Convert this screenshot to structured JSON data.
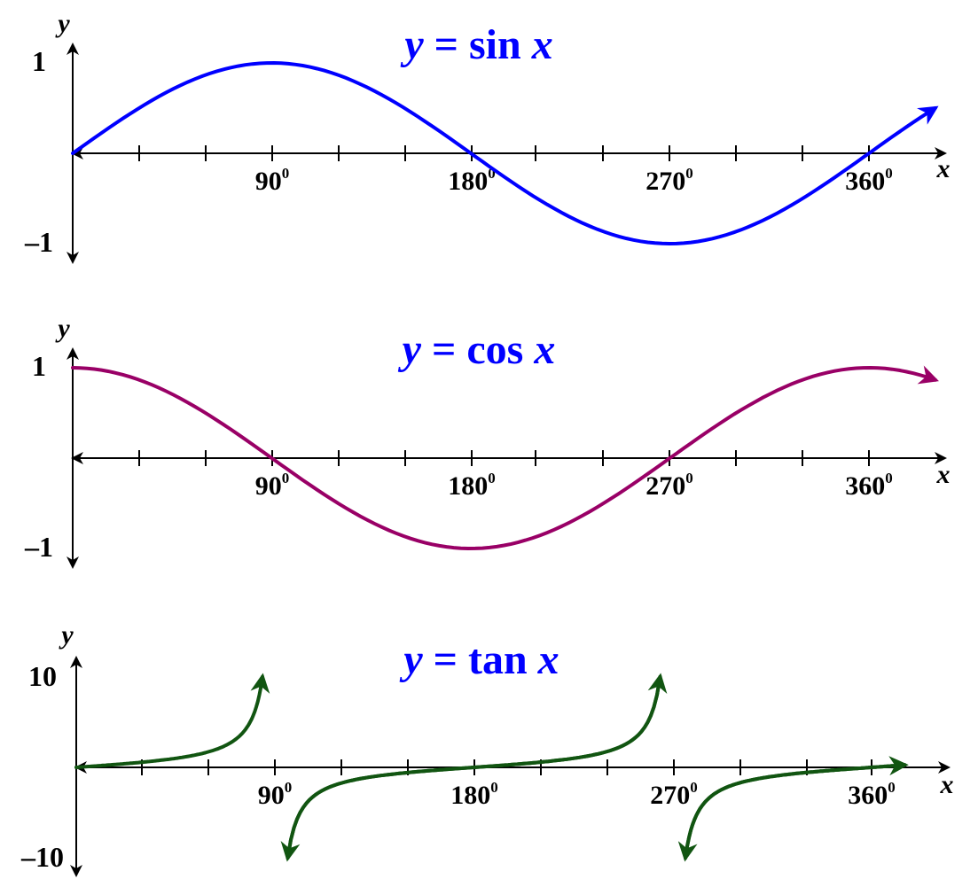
{
  "chart_data": [
    {
      "type": "line",
      "title": {
        "prefix": "y",
        "rest": " = sin ",
        "var": "x"
      },
      "xlabel": "x",
      "ylabel": "y",
      "xlim": [
        0,
        360
      ],
      "ylim": [
        -1,
        1
      ],
      "y_tick_labels": [
        "1",
        "–1"
      ],
      "x_tick_labels": [
        {
          "value": 90,
          "base": "90",
          "sup": "0"
        },
        {
          "value": 180,
          "base": "180",
          "sup": "0"
        },
        {
          "value": 270,
          "base": "270",
          "sup": "0"
        },
        {
          "value": 360,
          "base": "360",
          "sup": "0"
        }
      ],
      "x_minor_ticks": [
        30,
        60,
        90,
        120,
        150,
        180,
        210,
        240,
        270,
        300,
        330,
        360
      ],
      "color": "#0000ff",
      "function": "sin",
      "series": [
        {
          "x": [
            0,
            30,
            60,
            90,
            120,
            150,
            180,
            210,
            240,
            270,
            300,
            330,
            360,
            390
          ],
          "y": [
            0,
            0.5,
            0.87,
            1,
            0.87,
            0.5,
            0,
            -0.5,
            -0.87,
            -1,
            -0.87,
            -0.5,
            0,
            0.5
          ]
        }
      ]
    },
    {
      "type": "line",
      "title": {
        "prefix": "y",
        "rest": " = cos ",
        "var": "x"
      },
      "xlabel": "x",
      "ylabel": "y",
      "xlim": [
        0,
        360
      ],
      "ylim": [
        -1,
        1
      ],
      "y_tick_labels": [
        "1",
        "–1"
      ],
      "x_tick_labels": [
        {
          "value": 90,
          "base": "90",
          "sup": "0"
        },
        {
          "value": 180,
          "base": "180",
          "sup": "0"
        },
        {
          "value": 270,
          "base": "270",
          "sup": "0"
        },
        {
          "value": 360,
          "base": "360",
          "sup": "0"
        }
      ],
      "x_minor_ticks": [
        30,
        60,
        90,
        120,
        150,
        180,
        210,
        240,
        270,
        300,
        330,
        360
      ],
      "color": "#990066",
      "function": "cos",
      "series": [
        {
          "x": [
            0,
            30,
            60,
            90,
            120,
            150,
            180,
            210,
            240,
            270,
            300,
            330,
            360,
            390
          ],
          "y": [
            1,
            0.87,
            0.5,
            0,
            -0.5,
            -0.87,
            -1,
            -0.87,
            -0.5,
            0,
            0.5,
            0.87,
            1,
            0.87
          ]
        }
      ]
    },
    {
      "type": "line",
      "title": {
        "prefix": "y",
        "rest": " = tan ",
        "var": "x"
      },
      "xlabel": "x",
      "ylabel": "y",
      "xlim": [
        0,
        360
      ],
      "ylim": [
        -10,
        10
      ],
      "y_tick_labels": [
        "10",
        "–10"
      ],
      "x_tick_labels": [
        {
          "value": 90,
          "base": "90",
          "sup": "0"
        },
        {
          "value": 180,
          "base": "180",
          "sup": "0"
        },
        {
          "value": 270,
          "base": "270",
          "sup": "0"
        },
        {
          "value": 360,
          "base": "360",
          "sup": "0"
        }
      ],
      "x_minor_ticks": [
        30,
        60,
        90,
        120,
        150,
        180,
        210,
        240,
        270,
        300,
        330,
        360
      ],
      "color": "#115511",
      "function": "tan",
      "series": [
        {
          "x": [
            0,
            30,
            45,
            60,
            75,
            84.3
          ],
          "y": [
            0,
            0.58,
            1,
            1.73,
            3.73,
            10
          ]
        },
        {
          "x": [
            95.7,
            105,
            120,
            135,
            150,
            180,
            210,
            225,
            240,
            255,
            264.3
          ],
          "y": [
            -10,
            -3.73,
            -1.73,
            -1,
            -0.58,
            0,
            0.58,
            1,
            1.73,
            3.73,
            10
          ]
        },
        {
          "x": [
            275.7,
            285,
            300,
            315,
            330,
            360,
            375
          ],
          "y": [
            -10,
            -3.73,
            -1.73,
            -1,
            -0.58,
            0,
            0.27
          ]
        }
      ]
    }
  ]
}
